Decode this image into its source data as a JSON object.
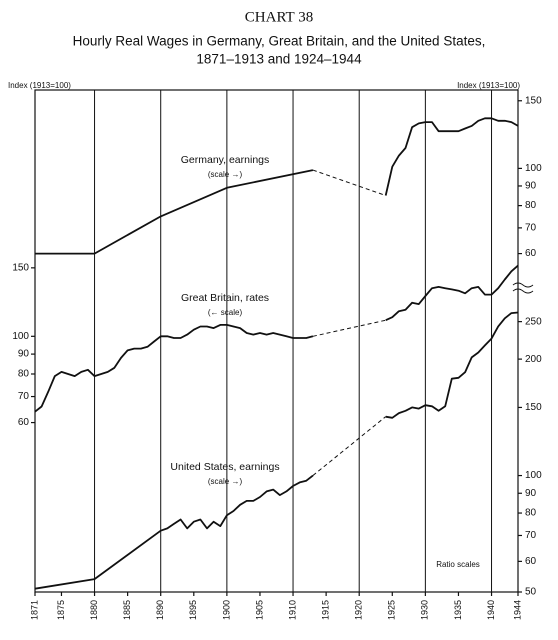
{
  "chart_data": {
    "type": "line",
    "title": "CHART 38",
    "subtitle": "Hourly Real Wages in Germany, Great Britain, and the United States,",
    "subtitle2": "1871–1913 and 1924–1944",
    "y_label_left": "Index (1913=100)",
    "y_label_right": "Index (1913=100)",
    "note": "Ratio scales",
    "log_scale": true,
    "color": "#111111",
    "xlim": [
      1871,
      1944
    ],
    "xticks": [
      1871,
      1875,
      1880,
      1885,
      1890,
      1895,
      1900,
      1905,
      1910,
      1915,
      1920,
      1925,
      1930,
      1935,
      1940,
      1944
    ],
    "xgrid": [
      1880,
      1890,
      1900,
      1910,
      1920,
      1930,
      1940
    ],
    "ylim": [
      22,
      430
    ],
    "yticks": [
      60,
      70,
      80,
      90,
      100,
      150
    ],
    "y2lim": [
      50,
      160
    ],
    "y2ticks": [
      60,
      70,
      80,
      90,
      100,
      150
    ],
    "y3lim": [
      50,
      300
    ],
    "y3ticks": [
      50,
      60,
      70,
      80,
      90,
      100,
      150,
      200,
      250
    ],
    "series": [
      {
        "name": "Germany, earnings",
        "scale_note": "(scale →)",
        "axis": "y2",
        "x": [
          1871,
          1880,
          1890,
          1900,
          1913,
          1918,
          1924,
          1925,
          1926,
          1927,
          1928,
          1929,
          1930,
          1931,
          1932,
          1933,
          1934,
          1935,
          1936,
          1937,
          1938,
          1939,
          1940,
          1941,
          1942,
          1943,
          1944
        ],
        "values": [
          60,
          60,
          75,
          89,
          99,
          null,
          85,
          101,
          108,
          113,
          128,
          131,
          132,
          132,
          125,
          125,
          125,
          125,
          127,
          129,
          133,
          135,
          135,
          133,
          133,
          132,
          129
        ]
      },
      {
        "name": "Great Britain, rates",
        "scale_note": "(← scale)",
        "axis": "y",
        "x": [
          1871,
          1872,
          1873,
          1874,
          1875,
          1876,
          1877,
          1878,
          1879,
          1880,
          1881,
          1882,
          1883,
          1884,
          1885,
          1886,
          1887,
          1888,
          1889,
          1890,
          1891,
          1892,
          1893,
          1894,
          1895,
          1896,
          1897,
          1898,
          1899,
          1900,
          1901,
          1902,
          1903,
          1904,
          1905,
          1906,
          1907,
          1908,
          1909,
          1910,
          1911,
          1912,
          1913,
          1918,
          1924,
          1925,
          1926,
          1927,
          1928,
          1929,
          1930,
          1931,
          1932,
          1933,
          1934,
          1935,
          1936,
          1937,
          1938,
          1939,
          1940,
          1941,
          1942,
          1943,
          1944
        ],
        "values": [
          64,
          66,
          72,
          79,
          81,
          80,
          79,
          81,
          82,
          79,
          80,
          81,
          83,
          88,
          92,
          93,
          93,
          94,
          97,
          100,
          100,
          99,
          99,
          101,
          104,
          106,
          106,
          105,
          107,
          107,
          106,
          105,
          102,
          101,
          102,
          101,
          102,
          101,
          100,
          99,
          99,
          99,
          100,
          null,
          110,
          112,
          116,
          117,
          122,
          121,
          127,
          133,
          134,
          133,
          132,
          131,
          129,
          133,
          134,
          128,
          128,
          133,
          140,
          147,
          152
        ]
      },
      {
        "name": "United States, earnings",
        "scale_note": "(scale →)",
        "axis": "y3",
        "x": [
          1871,
          1880,
          1890,
          1891,
          1892,
          1893,
          1894,
          1895,
          1896,
          1897,
          1898,
          1899,
          1900,
          1901,
          1902,
          1903,
          1904,
          1905,
          1906,
          1907,
          1908,
          1909,
          1910,
          1911,
          1912,
          1913,
          1918,
          1924,
          1925,
          1926,
          1927,
          1928,
          1929,
          1930,
          1931,
          1932,
          1933,
          1934,
          1935,
          1936,
          1937,
          1938,
          1939,
          1940,
          1941,
          1942,
          1943,
          1944
        ],
        "values": [
          51,
          54,
          72,
          73,
          75,
          77,
          73,
          76,
          77,
          73,
          76,
          74,
          79,
          81,
          84,
          86,
          86,
          88,
          91,
          92,
          89,
          91,
          94,
          96,
          97,
          100,
          null,
          142,
          141,
          145,
          147,
          150,
          149,
          152,
          151,
          147,
          151,
          178,
          179,
          185,
          202,
          208,
          217,
          226,
          243,
          255,
          263,
          264
        ]
      }
    ]
  }
}
